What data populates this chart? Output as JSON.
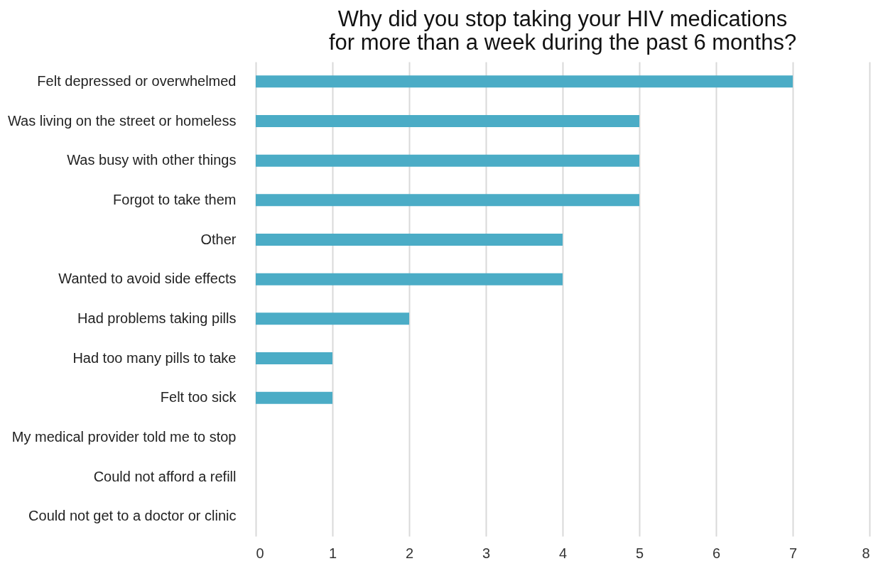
{
  "chart_data": {
    "type": "bar",
    "orientation": "horizontal",
    "title": "Why did you stop taking your HIV medications for more than a week during the past 6 months?",
    "categories": [
      "Felt depressed or overwhelmed",
      "Was living on the street or homeless",
      "Was busy with other things",
      "Forgot to take them",
      "Other",
      "Wanted to avoid side effects",
      "Had problems taking pills",
      "Had too many pills to take",
      "Felt too sick",
      "My medical provider told me to stop",
      "Could not afford a refill",
      "Could not get to a doctor or clinic"
    ],
    "values": [
      7,
      5,
      5,
      5,
      4,
      4,
      2,
      1,
      1,
      0,
      0,
      0
    ],
    "color": "#4bacc6",
    "xlim": [
      0,
      8
    ],
    "xticks": [
      0,
      1,
      2,
      3,
      4,
      5,
      6,
      7,
      8
    ],
    "grid": "x"
  }
}
